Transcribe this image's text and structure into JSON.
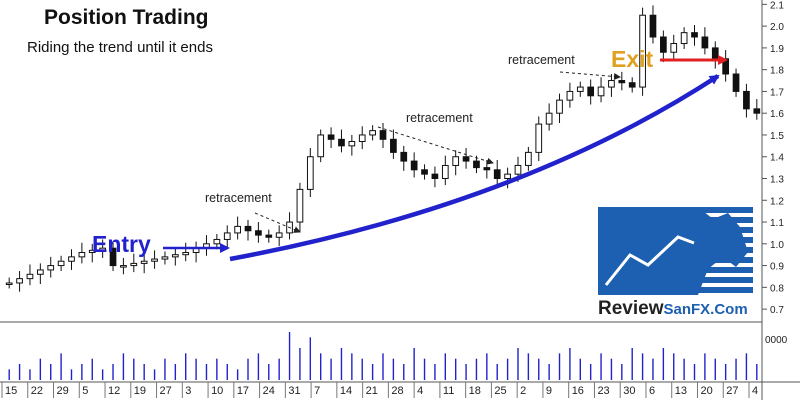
{
  "title": "Position Trading",
  "subtitle": "Riding the trend until it ends",
  "annotations": {
    "entry": "Entry",
    "exit": "Exit",
    "retracement_1": "retracement",
    "retracement_2": "retracement",
    "retracement_3": "retracement"
  },
  "logo": {
    "word": "Review",
    "brand": "SanFX.Com"
  },
  "colors": {
    "entry": "#2222cc",
    "exit_text": "#e0a020",
    "exit_arrow": "#e02020",
    "trend_arrow": "#2222cc",
    "volume": "#2222cc",
    "candle": "#111111",
    "logo_blue": "#1d5fb0"
  },
  "chart_data": {
    "type": "candlestick",
    "y_ticks": [
      "2.1",
      "2.0",
      "1.9",
      "1.8",
      "1.7",
      "1.6",
      "1.5",
      "1.4",
      "1.3",
      "1.2",
      "1.1",
      "1.0",
      "0.9",
      "0.8",
      "0.7"
    ],
    "ylim": [
      0.65,
      2.12
    ],
    "volume_tick": "0000",
    "x_ticks": [
      "15",
      "22",
      "29",
      "5",
      "12",
      "19",
      "27",
      "3",
      "10",
      "17",
      "24",
      "31",
      "7",
      "14",
      "21",
      "28",
      "4",
      "11",
      "18",
      "25",
      "2",
      "9",
      "16",
      "23",
      "30",
      "6",
      "13",
      "20",
      "27",
      "4"
    ],
    "price_path": [
      0.82,
      0.84,
      0.86,
      0.88,
      0.9,
      0.92,
      0.94,
      0.96,
      0.97,
      0.98,
      0.9,
      0.9,
      0.91,
      0.92,
      0.93,
      0.94,
      0.95,
      0.96,
      0.98,
      1.0,
      1.02,
      1.05,
      1.08,
      1.06,
      1.04,
      1.03,
      1.05,
      1.1,
      1.25,
      1.4,
      1.5,
      1.48,
      1.45,
      1.47,
      1.5,
      1.52,
      1.48,
      1.42,
      1.38,
      1.34,
      1.32,
      1.3,
      1.36,
      1.4,
      1.38,
      1.35,
      1.34,
      1.3,
      1.32,
      1.36,
      1.42,
      1.55,
      1.6,
      1.66,
      1.7,
      1.72,
      1.68,
      1.72,
      1.75,
      1.74,
      1.72,
      2.05,
      1.95,
      1.88,
      1.92,
      1.97,
      1.95,
      1.9,
      1.85,
      1.78,
      1.7,
      1.62,
      1.6
    ],
    "volume": [
      2,
      3,
      2,
      4,
      3,
      5,
      2,
      3,
      4,
      2,
      3,
      5,
      4,
      3,
      2,
      4,
      3,
      5,
      4,
      3,
      4,
      3,
      2,
      4,
      5,
      3,
      4,
      9,
      6,
      8,
      5,
      4,
      6,
      5,
      4,
      3,
      5,
      4,
      3,
      6,
      4,
      3,
      5,
      4,
      3,
      4,
      5,
      3,
      4,
      6,
      5,
      4,
      3,
      5,
      6,
      4,
      3,
      5,
      4,
      3,
      6,
      5,
      4,
      6,
      5,
      4,
      3,
      5,
      4,
      3,
      4,
      5,
      3
    ]
  }
}
